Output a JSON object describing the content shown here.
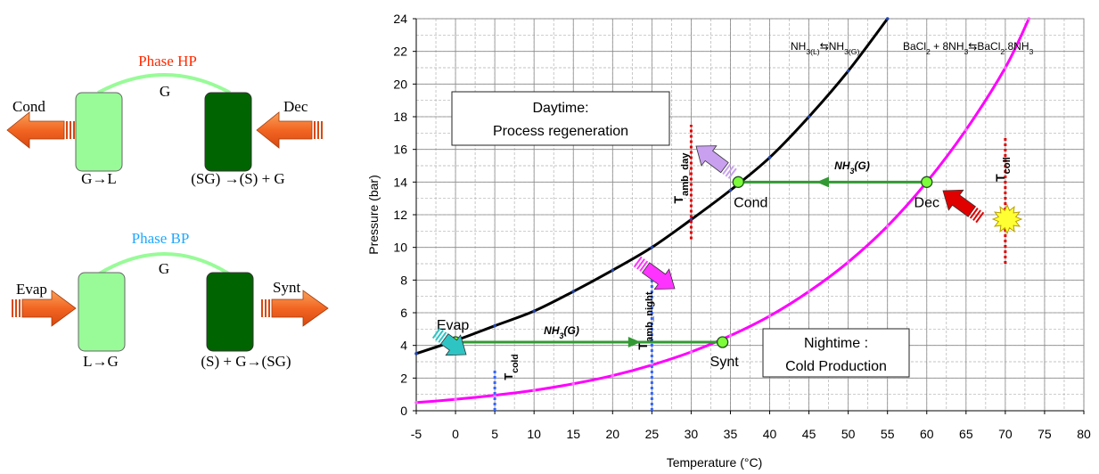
{
  "colors": {
    "light_green": "#98FB98",
    "dark_green": "#006400",
    "arrow_orange": "#F26522",
    "nh3_line": "#000000",
    "bacl2_line": "#FF00FF",
    "process_arrow": "#339933",
    "red_dotted": "#E00000",
    "blue_dotted": "#3366FF",
    "hp_label": "#FF2A00",
    "bp_label": "#1FA8FF"
  },
  "schematic": {
    "hp": {
      "title": "Phase HP",
      "vapor": "G",
      "left_label": "Cond",
      "right_label": "Dec",
      "left_reaction": "G→L",
      "right_reaction": "(SG) →(S) + G"
    },
    "bp": {
      "title": "Phase BP",
      "vapor": "G",
      "left_label": "Evap",
      "right_label": "Synt",
      "left_reaction": "L→G",
      "right_reaction": "(S) + G→(SG)"
    }
  },
  "chart_data": {
    "type": "line",
    "xlabel": "Temperature (°C)",
    "ylabel": "Pressure (bar)",
    "xlim": [
      -5,
      80
    ],
    "ylim": [
      0,
      24
    ],
    "x_ticks": [
      "-5",
      "0",
      "5",
      "10",
      "15",
      "20",
      "25",
      "30",
      "35",
      "40",
      "45",
      "50",
      "55",
      "60",
      "65",
      "70",
      "75",
      "80"
    ],
    "y_ticks": [
      "0",
      "2",
      "4",
      "6",
      "8",
      "10",
      "12",
      "14",
      "16",
      "18",
      "20",
      "22",
      "24"
    ],
    "grid": true,
    "series": [
      {
        "name": "NH3(L)⇆NH3(G)",
        "color": "#000000",
        "points": [
          [
            -5,
            3.5
          ],
          [
            0,
            4.3
          ],
          [
            5,
            5.2
          ],
          [
            10,
            6.1
          ],
          [
            15,
            7.3
          ],
          [
            20,
            8.6
          ],
          [
            25,
            10.0
          ],
          [
            30,
            11.7
          ],
          [
            35,
            13.5
          ],
          [
            40,
            15.5
          ],
          [
            45,
            18.0
          ],
          [
            50,
            20.8
          ],
          [
            55,
            24.0
          ]
        ]
      },
      {
        "name": "BaCl2 + 8NH3⇆BaCl2.8NH3",
        "color": "#FF00FF",
        "points": [
          [
            -5,
            0.5
          ],
          [
            0,
            0.7
          ],
          [
            5,
            0.95
          ],
          [
            10,
            1.25
          ],
          [
            15,
            1.65
          ],
          [
            20,
            2.15
          ],
          [
            25,
            2.8
          ],
          [
            30,
            3.6
          ],
          [
            35,
            4.6
          ],
          [
            40,
            5.8
          ],
          [
            45,
            7.3
          ],
          [
            50,
            9.1
          ],
          [
            55,
            11.3
          ],
          [
            60,
            14.0
          ],
          [
            65,
            17.2
          ],
          [
            70,
            21.0
          ],
          [
            73,
            24.0
          ]
        ]
      }
    ],
    "legend": {
      "nh3_parts": [
        "NH",
        "3(L)",
        "⇆NH",
        "3(G)"
      ],
      "bacl2_parts": [
        "BaCl",
        "2",
        " + 8NH",
        "3",
        "⇆BaCl",
        "2",
        ".8NH",
        "3"
      ]
    },
    "state_points": [
      {
        "label": "Evap",
        "x": 0,
        "y": 4.2
      },
      {
        "label": "Synt",
        "x": 34,
        "y": 4.2
      },
      {
        "label": "Cond",
        "x": 36,
        "y": 14
      },
      {
        "label": "Dec",
        "x": 60,
        "y": 14
      }
    ],
    "process_lines": [
      {
        "label_parts": [
          "NH",
          "3",
          "(G)"
        ],
        "from": [
          60,
          14
        ],
        "to": [
          36,
          14
        ]
      },
      {
        "label_parts": [
          "NH",
          "3",
          "(G)"
        ],
        "from": [
          0,
          4.2
        ],
        "to": [
          34,
          4.2
        ]
      }
    ],
    "temperature_markers": [
      {
        "label_main": "T",
        "label_sub": "amb_day",
        "x": 30,
        "y_range": [
          10.5,
          17.5
        ],
        "color": "#E00000"
      },
      {
        "label_main": "T",
        "label_sub": "coll",
        "x": 70,
        "y_range": [
          9,
          16.8
        ],
        "color": "#E00000"
      },
      {
        "label_main": "T",
        "label_sub": "cold",
        "x": 5,
        "y_range": [
          0,
          2.6
        ],
        "color": "#3366FF"
      },
      {
        "label_main": "T",
        "label_sub": "amb_night",
        "x": 25,
        "y_range": [
          0,
          8.5
        ],
        "color": "#3366FF"
      }
    ],
    "annotations": {
      "daytime_line1": "Daytime:",
      "daytime_line2": "Process regeneration",
      "nightime_line1": "Nightime :",
      "nightime_line2": "Cold Production"
    }
  }
}
